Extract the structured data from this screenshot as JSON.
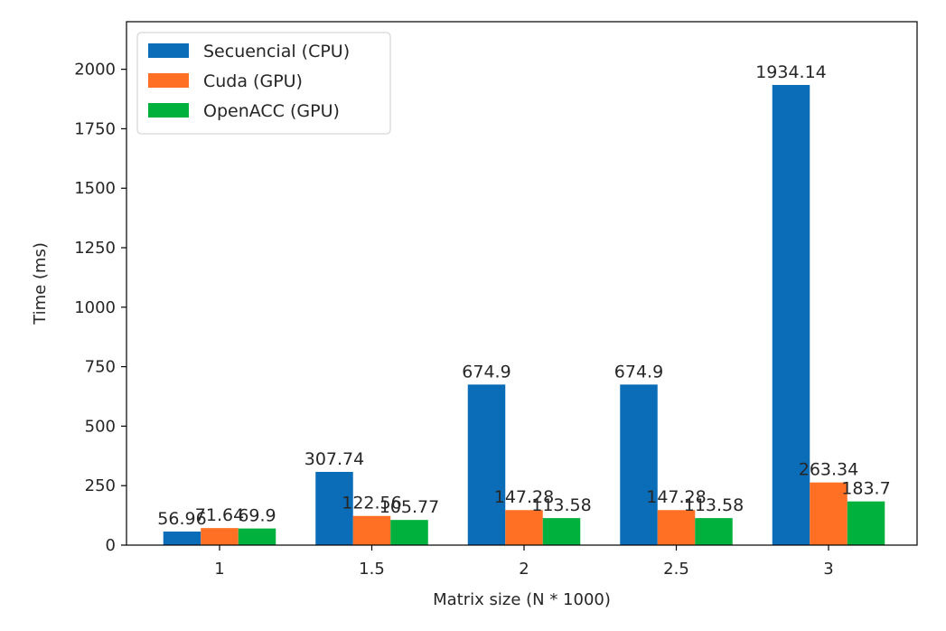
{
  "chart_data": {
    "type": "bar",
    "title": "",
    "xlabel": "Matrix size (N * 1000)",
    "ylabel": "Time (ms)",
    "categories": [
      "1",
      "1.5",
      "2",
      "2.5",
      "3"
    ],
    "ylim": [
      0,
      2200
    ],
    "yticks": [
      "0",
      "250",
      "500",
      "750",
      "1000",
      "1250",
      "1500",
      "1750",
      "2000"
    ],
    "grid": false,
    "legend_position": "top-left",
    "series": [
      {
        "name": "Secuencial (CPU)",
        "color": "#0b6db7",
        "values": [
          56.96,
          307.74,
          674.9,
          674.9,
          1934.14
        ],
        "labels": [
          "56.96",
          "307.74",
          "674.9",
          "674.9",
          "1934.14"
        ]
      },
      {
        "name": "Cuda (GPU)",
        "color": "#ff7024",
        "values": [
          71.64,
          122.56,
          147.28,
          147.28,
          263.34
        ],
        "labels": [
          "71.64",
          "122.56",
          "147.28",
          "147.28",
          "263.34"
        ]
      },
      {
        "name": "OpenACC (GPU)",
        "color": "#00b13d",
        "values": [
          69.9,
          105.77,
          113.58,
          113.58,
          183.7
        ],
        "labels": [
          "69.9",
          "105.77",
          "113.58",
          "113.58",
          "183.7"
        ]
      }
    ]
  }
}
